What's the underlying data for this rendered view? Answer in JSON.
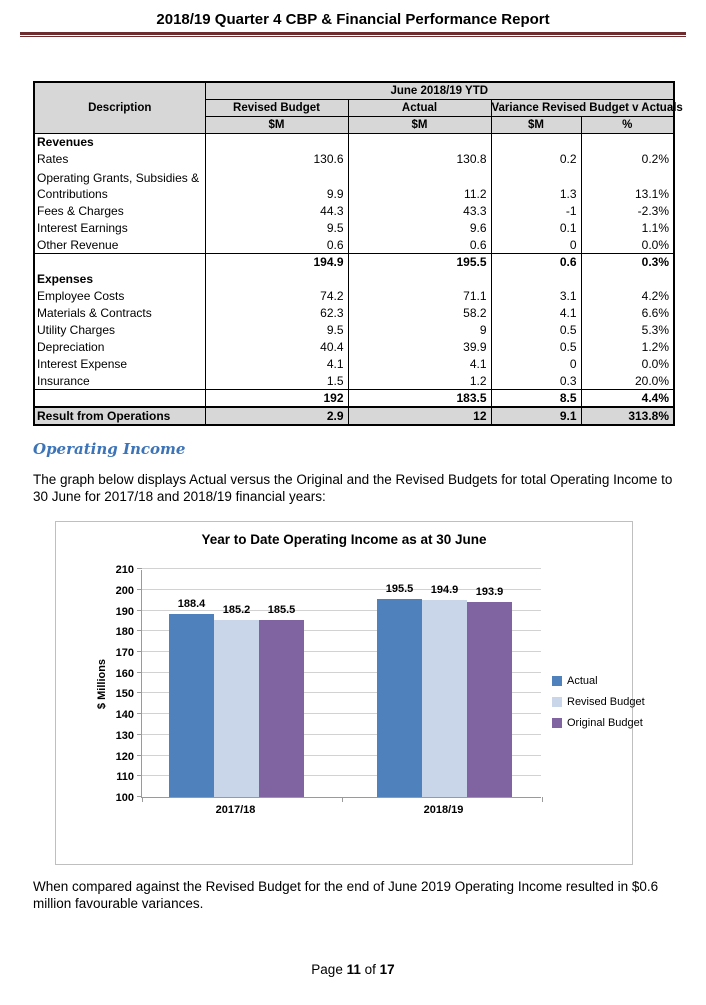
{
  "page": {
    "header_title": "2018/19 Quarter 4 CBP & Financial Performance Report",
    "footer": {
      "prefix": "Page",
      "page_number": "11",
      "of": "of",
      "total_pages": "17"
    }
  },
  "colors": {
    "header_rule": "#6f2c2e",
    "section_heading": "#3d74b8",
    "table_header_bg": "#d7d7d7"
  },
  "table": {
    "header": {
      "description": "Description",
      "group": "June 2018/19 YTD",
      "col1": "Revised Budget",
      "col2": "Actual",
      "col3": "Variance Revised Budget v Actuals",
      "units": [
        "$M",
        "$M",
        "$M",
        "%"
      ]
    },
    "rows": [
      {
        "type": "section",
        "label": "Revenues"
      },
      {
        "label": "Rates",
        "values": [
          "130.6",
          "130.8",
          "0.2",
          "0.2%"
        ]
      },
      {
        "type": "wrap",
        "label": "Operating Grants, Subsidies & Contributions",
        "values": [
          "9.9",
          "11.2",
          "1.3",
          "13.1%"
        ]
      },
      {
        "label": "Fees & Charges",
        "values": [
          "44.3",
          "43.3",
          "-1",
          "-2.3%"
        ]
      },
      {
        "label": "Interest Earnings",
        "values": [
          "9.5",
          "9.6",
          "0.1",
          "1.1%"
        ]
      },
      {
        "label": "Other Revenue",
        "values": [
          "0.6",
          "0.6",
          "0",
          "0.0%"
        ]
      },
      {
        "type": "subtotal",
        "label": "",
        "values": [
          "194.9",
          "195.5",
          "0.6",
          "0.3%"
        ]
      },
      {
        "type": "section",
        "label": "Expenses"
      },
      {
        "label": "Employee Costs",
        "values": [
          "74.2",
          "71.1",
          "3.1",
          "4.2%"
        ]
      },
      {
        "label": "Materials & Contracts",
        "values": [
          "62.3",
          "58.2",
          "4.1",
          "6.6%"
        ]
      },
      {
        "label": "Utility Charges",
        "values": [
          "9.5",
          "9",
          "0.5",
          "5.3%"
        ]
      },
      {
        "label": "Depreciation",
        "values": [
          "40.4",
          "39.9",
          "0.5",
          "1.2%"
        ]
      },
      {
        "label": "Interest Expense",
        "values": [
          "4.1",
          "4.1",
          "0",
          "0.0%"
        ]
      },
      {
        "label": "Insurance",
        "values": [
          "1.5",
          "1.2",
          "0.3",
          "20.0%"
        ]
      },
      {
        "type": "subtotal",
        "label": "",
        "values": [
          "192",
          "183.5",
          "8.5",
          "4.4%"
        ]
      },
      {
        "type": "result",
        "label": "Result from Operations",
        "values": [
          "2.9",
          "12",
          "9.1",
          "313.8%"
        ]
      }
    ]
  },
  "section": {
    "heading": "Operating Income",
    "intro": "The graph below displays Actual versus the Original and the Revised Budgets for total Operating Income to 30 June for 2017/18 and 2018/19 financial years:",
    "outro": "When compared against the Revised Budget for the end of June 2019 Operating Income resulted in $0.6 million favourable variances."
  },
  "chart_data": {
    "type": "bar",
    "title": "Year to Date Operating Income as at 30 June",
    "xlabel": "",
    "ylabel": "$ Millions",
    "categories": [
      "2017/18",
      "2018/19"
    ],
    "series": [
      {
        "name": "Actual",
        "color": "#4f81bd",
        "values": [
          188.4,
          195.5
        ]
      },
      {
        "name": "Revised Budget",
        "color": "#c9d6ea",
        "values": [
          185.2,
          194.9
        ]
      },
      {
        "name": "Original Budget",
        "color": "#8064a2",
        "values": [
          185.5,
          193.9
        ]
      }
    ],
    "ylim": [
      100,
      210
    ],
    "ytick_step": 10,
    "grid": true,
    "legend_position": "right"
  }
}
